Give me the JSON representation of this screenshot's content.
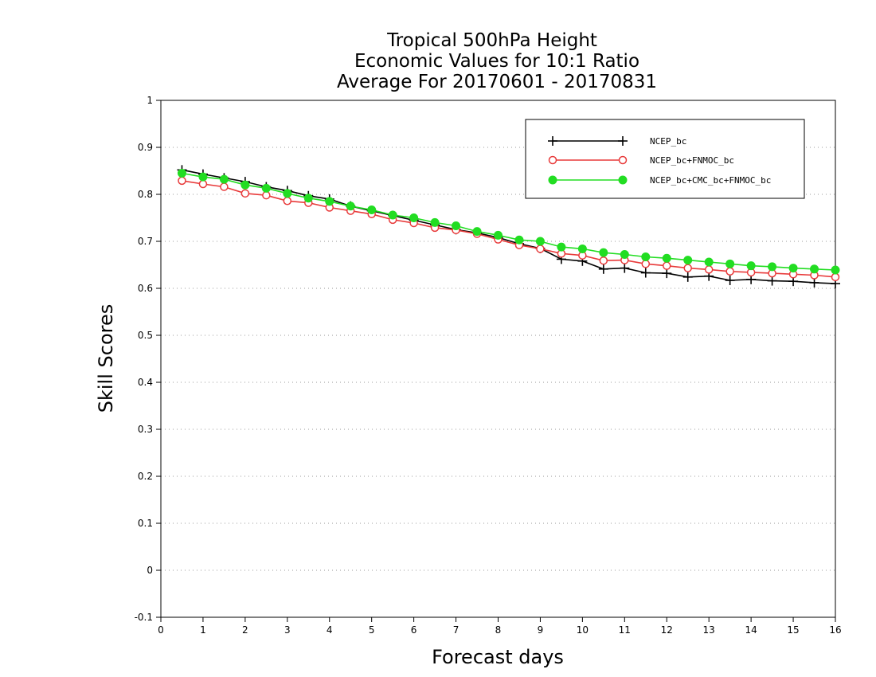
{
  "chart_data": {
    "type": "line",
    "title_lines": [
      "Tropical 500hPa Height",
      "Economic Values for 10:1 Ratio",
      "Average For 20170601 - 20170831"
    ],
    "xlabel": "Forecast days",
    "ylabel": "Skill Scores",
    "xlim": [
      0,
      16
    ],
    "ylim": [
      -0.1,
      1
    ],
    "xticks": [
      0,
      1,
      2,
      3,
      4,
      5,
      6,
      7,
      8,
      9,
      10,
      11,
      12,
      13,
      14,
      15,
      16
    ],
    "xtick_labels": [
      "0",
      "1",
      "2",
      "3",
      "4",
      "5",
      "6",
      "7",
      "8",
      "9",
      "10",
      "11",
      "12",
      "13",
      "14",
      "15",
      "16"
    ],
    "yticks": [
      -0.1,
      0,
      0.1,
      0.2,
      0.3,
      0.4,
      0.5,
      0.6,
      0.7,
      0.8,
      0.9,
      1
    ],
    "ytick_labels": [
      "-0.1",
      "0",
      "0.1",
      "0.2",
      "0.3",
      "0.4",
      "0.5",
      "0.6",
      "0.7",
      "0.8",
      "0.9",
      "1"
    ],
    "grid": "horizontal dotted",
    "legend_position": "top-right",
    "x": [
      0.5,
      1,
      1.5,
      2,
      2.5,
      3,
      3.5,
      4,
      4.5,
      5,
      5.5,
      6,
      6.5,
      7,
      7.5,
      8,
      8.5,
      9,
      9.5,
      10,
      10.5,
      11,
      11.5,
      12,
      12.5,
      13,
      13.5,
      14,
      14.5,
      15,
      15.5,
      16
    ],
    "series": [
      {
        "name": "NCEP_bc",
        "color": "#000000",
        "marker": "plus",
        "values": [
          0.852,
          0.843,
          0.835,
          0.827,
          0.816,
          0.808,
          0.797,
          0.79,
          0.775,
          0.765,
          0.755,
          0.745,
          0.735,
          0.725,
          0.718,
          0.708,
          0.695,
          0.685,
          0.662,
          0.658,
          0.641,
          0.643,
          0.633,
          0.632,
          0.624,
          0.626,
          0.617,
          0.619,
          0.616,
          0.615,
          0.612,
          0.61
        ]
      },
      {
        "name": "NCEP_bc+FNMOC_bc",
        "color": "#e83a3a",
        "marker": "open-circle",
        "values": [
          0.829,
          0.822,
          0.816,
          0.802,
          0.798,
          0.786,
          0.782,
          0.772,
          0.765,
          0.758,
          0.746,
          0.739,
          0.729,
          0.724,
          0.716,
          0.704,
          0.692,
          0.684,
          0.674,
          0.67,
          0.659,
          0.66,
          0.652,
          0.648,
          0.643,
          0.64,
          0.636,
          0.634,
          0.632,
          0.63,
          0.628,
          0.624
        ]
      },
      {
        "name": "NCEP_bc+CMC_bc+FNMOC_bc",
        "color": "#22dd22",
        "marker": "filled-circle",
        "values": [
          0.845,
          0.837,
          0.832,
          0.82,
          0.813,
          0.802,
          0.792,
          0.785,
          0.775,
          0.767,
          0.756,
          0.75,
          0.74,
          0.733,
          0.721,
          0.713,
          0.703,
          0.7,
          0.688,
          0.684,
          0.676,
          0.672,
          0.667,
          0.664,
          0.66,
          0.656,
          0.652,
          0.648,
          0.646,
          0.643,
          0.641,
          0.639
        ]
      }
    ]
  }
}
